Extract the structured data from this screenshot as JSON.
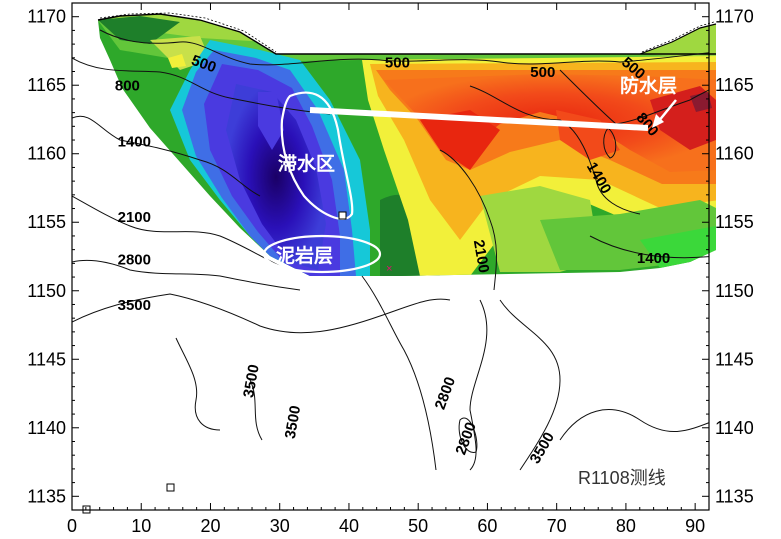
{
  "chart_data": {
    "type": "heatmap",
    "title": "",
    "xlabel": "",
    "ylabel": "",
    "xlim": [
      0,
      92
    ],
    "ylim": [
      1134,
      1171
    ],
    "x_ticks": [
      0,
      10,
      20,
      30,
      40,
      50,
      60,
      70,
      80,
      90
    ],
    "y_ticks": [
      1135,
      1140,
      1145,
      1150,
      1155,
      1160,
      1165,
      1170
    ],
    "grid": false,
    "line_name": "R1108测线",
    "annotations": {
      "waterproof_layer": "防水层",
      "water_zone": "滞水区",
      "mudstone_layer": "泥岩层"
    },
    "contours": [
      {
        "label": "500",
        "x": 19,
        "y": 1166.5
      },
      {
        "label": "500",
        "x": 47,
        "y": 1166.6
      },
      {
        "label": "500",
        "x": 68,
        "y": 1165.9
      },
      {
        "label": "500",
        "x": 81,
        "y": 1166.2
      },
      {
        "label": "800",
        "x": 8,
        "y": 1164.9
      },
      {
        "label": "800",
        "x": 83,
        "y": 1162.1
      },
      {
        "label": "1400",
        "x": 9,
        "y": 1160.8
      },
      {
        "label": "1400",
        "x": 76,
        "y": 1158.2
      },
      {
        "label": "1400",
        "x": 84,
        "y": 1152.3
      },
      {
        "label": "2100",
        "x": 9,
        "y": 1155.3
      },
      {
        "label": "2100",
        "x": 59,
        "y": 1152.5
      },
      {
        "label": "2800",
        "x": 9,
        "y": 1152.2
      },
      {
        "label": "2800",
        "x": 54,
        "y": 1142.5
      },
      {
        "label": "2800",
        "x": 57,
        "y": 1139.2
      },
      {
        "label": "3500",
        "x": 9,
        "y": 1148.9
      },
      {
        "label": "3500",
        "x": 26,
        "y": 1143.4
      },
      {
        "label": "3500",
        "x": 32,
        "y": 1140.4
      },
      {
        "label": "3500",
        "x": 68,
        "y": 1138.5
      }
    ]
  }
}
